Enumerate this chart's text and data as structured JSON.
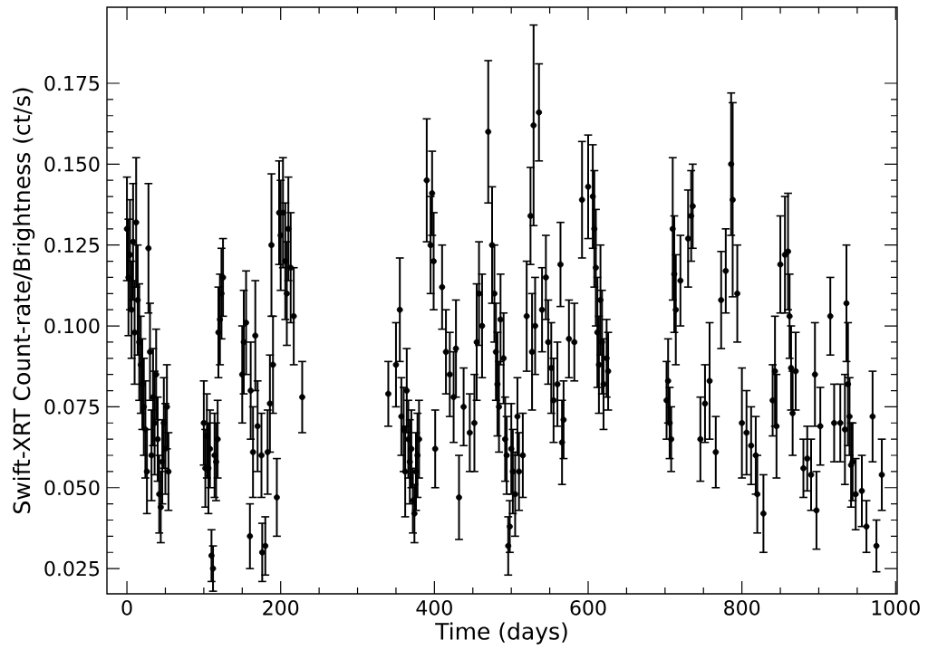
{
  "chart_data": {
    "type": "scatter",
    "xlabel": "Time (days)",
    "ylabel": "Swift-XRT Count-rate/Brightness (ct/s)",
    "marker": "circle",
    "grid": false,
    "legend": false,
    "xlim": [
      -26,
      1002
    ],
    "ylim": [
      0.0172,
      0.1985
    ],
    "xticks": [
      0,
      200,
      400,
      600,
      800,
      1000
    ],
    "yticks": [
      0.025,
      {
        "value": 0.05,
        "label": "0.050"
      },
      0.075,
      {
        "value": 0.1,
        "label": "0.100"
      },
      0.125,
      {
        "value": 0.15,
        "label": "0.150"
      },
      0.175
    ],
    "series": [
      {
        "color": "#000000",
        "x": [
          0,
          2,
          4,
          6,
          8,
          10,
          12,
          14,
          16,
          18,
          20,
          22,
          24,
          26,
          28,
          30,
          32,
          34,
          36,
          38,
          40,
          42,
          44,
          46,
          48,
          50,
          52,
          54,
          100,
          102,
          104,
          106,
          108,
          110,
          112,
          114,
          116,
          118,
          119,
          121,
          123,
          125,
          150,
          152,
          155,
          160,
          161,
          164,
          167,
          170,
          175,
          176,
          180,
          183,
          186,
          188,
          190,
          195,
          198,
          200,
          203,
          206,
          208,
          210,
          213,
          217,
          228,
          340,
          350,
          355,
          357,
          360,
          362,
          364,
          366,
          368,
          370,
          372,
          374,
          376,
          378,
          380,
          390,
          395,
          397,
          399,
          401,
          410,
          415,
          420,
          425,
          428,
          432,
          438,
          446,
          452,
          455,
          458,
          462,
          470,
          475,
          478,
          480,
          482,
          484,
          486,
          490,
          492,
          494,
          496,
          498,
          500,
          502,
          505,
          508,
          510,
          515,
          520,
          525,
          527,
          529,
          531,
          536,
          540,
          545,
          548,
          552,
          555,
          560,
          564,
          566,
          568,
          575,
          582,
          592,
          600,
          606,
          608,
          610,
          612,
          614,
          616,
          618,
          620,
          624,
          626,
          702,
          704,
          706,
          708,
          710,
          712,
          714,
          720,
          730,
          734,
          736,
          746,
          752,
          758,
          766,
          773,
          779,
          786,
          788,
          794,
          800,
          806,
          812,
          818,
          820,
          828,
          840,
          843,
          845,
          850,
          856,
          860,
          862,
          864,
          866,
          870,
          880,
          885,
          890,
          895,
          897,
          902,
          915,
          920,
          928,
          934,
          936,
          938,
          940,
          942,
          944,
          948,
          956,
          962,
          970,
          975,
          982
        ],
        "values": [
          0.13,
          0.115,
          0.122,
          0.105,
          0.126,
          0.098,
          0.132,
          0.108,
          0.095,
          0.088,
          0.082,
          0.075,
          0.068,
          0.055,
          0.124,
          0.092,
          0.06,
          0.078,
          0.07,
          0.085,
          0.065,
          0.048,
          0.044,
          0.058,
          0.07,
          0.062,
          0.075,
          0.055,
          0.07,
          0.056,
          0.066,
          0.056,
          0.062,
          0.029,
          0.025,
          0.06,
          0.058,
          0.065,
          0.098,
          0.102,
          0.11,
          0.115,
          0.085,
          0.095,
          0.101,
          0.035,
          0.08,
          0.061,
          0.097,
          0.069,
          0.06,
          0.03,
          0.032,
          0.061,
          0.076,
          0.125,
          0.088,
          0.047,
          0.135,
          0.128,
          0.135,
          0.12,
          0.11,
          0.13,
          0.118,
          0.103,
          0.078,
          0.079,
          0.088,
          0.105,
          0.072,
          0.068,
          0.055,
          0.08,
          0.065,
          0.058,
          0.062,
          0.046,
          0.042,
          0.055,
          0.06,
          0.065,
          0.145,
          0.125,
          0.141,
          0.12,
          0.062,
          0.112,
          0.092,
          0.085,
          0.078,
          0.093,
          0.047,
          0.075,
          0.067,
          0.07,
          0.095,
          0.11,
          0.1,
          0.16,
          0.125,
          0.11,
          0.092,
          0.082,
          0.075,
          0.102,
          0.09,
          0.065,
          0.06,
          0.032,
          0.038,
          0.062,
          0.055,
          0.048,
          0.072,
          0.055,
          0.06,
          0.103,
          0.134,
          0.092,
          0.162,
          0.1,
          0.166,
          0.105,
          0.115,
          0.095,
          0.087,
          0.077,
          0.082,
          0.119,
          0.064,
          0.071,
          0.096,
          0.095,
          0.139,
          0.143,
          0.14,
          0.13,
          0.118,
          0.098,
          0.088,
          0.108,
          0.095,
          0.082,
          0.09,
          0.086,
          0.077,
          0.083,
          0.07,
          0.065,
          0.13,
          0.116,
          0.105,
          0.114,
          0.127,
          0.134,
          0.137,
          0.065,
          0.076,
          0.083,
          0.061,
          0.108,
          0.117,
          0.15,
          0.139,
          0.11,
          0.07,
          0.067,
          0.063,
          0.06,
          0.048,
          0.042,
          0.077,
          0.086,
          0.069,
          0.119,
          0.122,
          0.123,
          0.103,
          0.087,
          0.073,
          0.086,
          0.056,
          0.059,
          0.054,
          0.085,
          0.043,
          0.069,
          0.103,
          0.07,
          0.07,
          0.068,
          0.107,
          0.082,
          0.072,
          0.057,
          0.058,
          0.048,
          0.049,
          0.038,
          0.072,
          0.032,
          0.054
        ],
        "errors": [
          0.016,
          0.018,
          0.017,
          0.015,
          0.018,
          0.016,
          0.02,
          0.017,
          0.018,
          0.015,
          0.014,
          0.015,
          0.015,
          0.013,
          0.02,
          0.015,
          0.014,
          0.015,
          0.016,
          0.014,
          0.013,
          0.012,
          0.011,
          0.013,
          0.014,
          0.014,
          0.013,
          0.012,
          0.013,
          0.012,
          0.013,
          0.014,
          0.012,
          0.008,
          0.007,
          0.013,
          0.012,
          0.012,
          0.014,
          0.014,
          0.014,
          0.012,
          0.015,
          0.016,
          0.016,
          0.01,
          0.015,
          0.014,
          0.017,
          0.014,
          0.013,
          0.009,
          0.009,
          0.013,
          0.015,
          0.022,
          0.015,
          0.012,
          0.016,
          0.017,
          0.017,
          0.018,
          0.016,
          0.016,
          0.017,
          0.015,
          0.011,
          0.01,
          0.013,
          0.016,
          0.012,
          0.013,
          0.014,
          0.013,
          0.012,
          0.013,
          0.012,
          0.01,
          0.009,
          0.012,
          0.013,
          0.012,
          0.019,
          0.015,
          0.013,
          0.015,
          0.012,
          0.013,
          0.013,
          0.013,
          0.014,
          0.015,
          0.013,
          0.012,
          0.012,
          0.015,
          0.018,
          0.016,
          0.016,
          0.022,
          0.018,
          0.015,
          0.015,
          0.016,
          0.014,
          0.014,
          0.014,
          0.013,
          0.012,
          0.009,
          0.008,
          0.014,
          0.013,
          0.013,
          0.012,
          0.012,
          0.013,
          0.017,
          0.015,
          0.018,
          0.031,
          0.015,
          0.015,
          0.013,
          0.013,
          0.013,
          0.014,
          0.013,
          0.013,
          0.013,
          0.013,
          0.012,
          0.012,
          0.012,
          0.018,
          0.016,
          0.016,
          0.018,
          0.018,
          0.017,
          0.015,
          0.017,
          0.016,
          0.014,
          0.012,
          0.012,
          0.012,
          0.013,
          0.011,
          0.01,
          0.022,
          0.018,
          0.017,
          0.014,
          0.015,
          0.014,
          0.013,
          0.013,
          0.012,
          0.018,
          0.011,
          0.015,
          0.013,
          0.022,
          0.03,
          0.015,
          0.017,
          0.013,
          0.012,
          0.012,
          0.012,
          0.012,
          0.011,
          0.017,
          0.016,
          0.015,
          0.018,
          0.018,
          0.013,
          0.013,
          0.013,
          0.012,
          0.009,
          0.01,
          0.011,
          0.016,
          0.012,
          0.012,
          0.012,
          0.012,
          0.012,
          0.017,
          0.018,
          0.019,
          0.012,
          0.013,
          0.012,
          0.011,
          0.011,
          0.008,
          0.014,
          0.008,
          0.011
        ]
      }
    ]
  }
}
